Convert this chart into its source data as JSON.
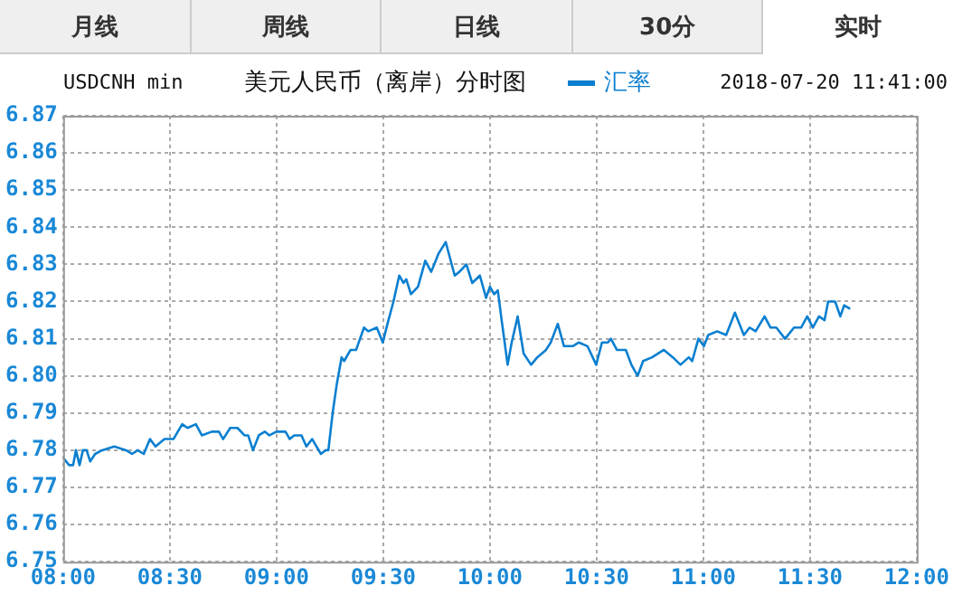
{
  "chart_data": {
    "type": "line",
    "title": "美元人民币（离岸）分时图",
    "subtitle": "USDCNH min",
    "annotations": [
      "月线",
      "周线",
      "日线",
      "30分",
      "实时",
      "2018-07-20 11:41:00"
    ],
    "legend": "top",
    "grid": true,
    "marker": "none",
    "line_style": "solid",
    "xlim": [
      8,
      12
    ],
    "xticks": [
      {
        "value": 8,
        "label": "08:00"
      },
      {
        "value": 8.5,
        "label": "08:30"
      },
      {
        "value": 9,
        "label": "09:00"
      },
      {
        "value": 9.5,
        "label": "09:30"
      },
      {
        "value": 10,
        "label": "10:00"
      },
      {
        "value": 10.5,
        "label": "10:30"
      },
      {
        "value": 11,
        "label": "11:00"
      },
      {
        "value": 11.5,
        "label": "11:30"
      },
      {
        "value": 12,
        "label": "12:00"
      }
    ],
    "ylim": [
      6.75,
      6.87
    ],
    "yticks": [
      6.75,
      6.76,
      6.77,
      6.78,
      6.79,
      {
        "value": 6.8,
        "label": "6.80"
      },
      6.81,
      6.82,
      6.83,
      6.84,
      6.85,
      6.86,
      6.87
    ],
    "series": [
      {
        "name": "汇率",
        "color": "#0a7fd0",
        "x": [
          8.0,
          8.028,
          8.047,
          8.06,
          8.077,
          8.093,
          8.11,
          8.127,
          8.15,
          8.183,
          8.24,
          8.295,
          8.323,
          8.35,
          8.378,
          8.407,
          8.433,
          8.475,
          8.517,
          8.558,
          8.583,
          8.622,
          8.65,
          8.697,
          8.73,
          8.75,
          8.783,
          8.817,
          8.85,
          8.867,
          8.89,
          8.917,
          8.945,
          8.967,
          9.0,
          9.042,
          9.062,
          9.083,
          9.117,
          9.14,
          9.167,
          9.208,
          9.23,
          9.243,
          9.263,
          9.283,
          9.305,
          9.317,
          9.347,
          9.373,
          9.41,
          9.43,
          9.47,
          9.498,
          9.52,
          9.548,
          9.575,
          9.595,
          9.608,
          9.63,
          9.663,
          9.697,
          9.725,
          9.76,
          9.793,
          9.835,
          9.857,
          9.89,
          9.917,
          9.953,
          9.982,
          10.0,
          10.02,
          10.037,
          10.055,
          10.083,
          10.102,
          10.13,
          10.158,
          10.193,
          10.222,
          10.263,
          10.285,
          10.318,
          10.347,
          10.388,
          10.417,
          10.457,
          10.498,
          10.525,
          10.553,
          10.567,
          10.595,
          10.637,
          10.663,
          10.692,
          10.718,
          10.76,
          10.815,
          10.857,
          10.893,
          10.932,
          10.948,
          10.977,
          11.003,
          11.023,
          11.065,
          11.107,
          11.148,
          11.19,
          11.217,
          11.245,
          11.287,
          11.315,
          11.342,
          11.383,
          11.425,
          11.458,
          11.487,
          11.513,
          11.542,
          11.568,
          11.585,
          11.618,
          11.642,
          11.66,
          11.688
        ],
        "values": [
          6.778,
          6.776,
          6.776,
          6.78,
          6.776,
          6.78,
          6.78,
          6.777,
          6.779,
          6.78,
          6.781,
          6.78,
          6.779,
          6.78,
          6.779,
          6.783,
          6.781,
          6.783,
          6.783,
          6.787,
          6.786,
          6.787,
          6.784,
          6.785,
          6.785,
          6.783,
          6.786,
          6.786,
          6.784,
          6.784,
          6.78,
          6.784,
          6.785,
          6.784,
          6.785,
          6.785,
          6.783,
          6.784,
          6.784,
          6.781,
          6.783,
          6.779,
          6.78,
          6.78,
          6.79,
          6.798,
          6.805,
          6.804,
          6.807,
          6.807,
          6.813,
          6.812,
          6.813,
          6.809,
          6.814,
          6.82,
          6.827,
          6.825,
          6.826,
          6.822,
          6.824,
          6.831,
          6.828,
          6.833,
          6.836,
          6.827,
          6.828,
          6.83,
          6.825,
          6.827,
          6.821,
          6.824,
          6.822,
          6.823,
          6.815,
          6.803,
          6.809,
          6.816,
          6.806,
          6.803,
          6.805,
          6.807,
          6.809,
          6.814,
          6.808,
          6.808,
          6.809,
          6.808,
          6.803,
          6.809,
          6.809,
          6.81,
          6.807,
          6.807,
          6.803,
          6.8,
          6.804,
          6.805,
          6.807,
          6.805,
          6.803,
          6.805,
          6.804,
          6.81,
          6.808,
          6.811,
          6.812,
          6.811,
          6.817,
          6.811,
          6.813,
          6.812,
          6.816,
          6.813,
          6.813,
          6.81,
          6.813,
          6.813,
          6.816,
          6.813,
          6.816,
          6.815,
          6.82,
          6.82,
          6.816,
          6.819,
          6.818
        ]
      }
    ]
  }
}
